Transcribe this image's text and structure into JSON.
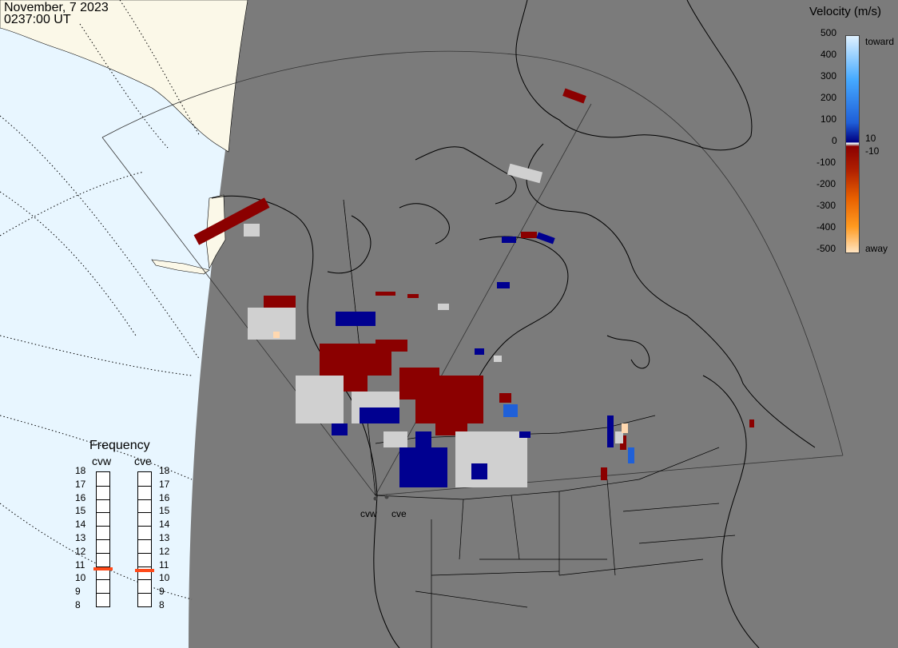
{
  "header": {
    "date": "November, 7 2023",
    "time": "0237:00 UT"
  },
  "legend": {
    "title": "Velocity (m/s)",
    "ticks": [
      "500",
      "400",
      "300",
      "200",
      "100",
      "0",
      "-100",
      "-200",
      "-300",
      "-400",
      "-500"
    ],
    "label_toward": "toward",
    "label_away": "away",
    "label_pos10": "10",
    "label_neg10": "-10",
    "colors": {
      "toward_max": "#dff1ff",
      "toward_mid": "#1f7fff",
      "toward_min": "#000080",
      "zero": "#c8c8c8",
      "away_min": "#8b0000",
      "away_mid": "#e86000",
      "away_max": "#ffe4c0"
    }
  },
  "frequency": {
    "title": "Frequency",
    "radars": [
      {
        "code": "cvw",
        "value_mhz": 10.8
      },
      {
        "code": "cve",
        "value_mhz": 10.7
      }
    ],
    "scale": [
      "18",
      "17",
      "16",
      "15",
      "14",
      "13",
      "12",
      "11",
      "10",
      "9",
      "8"
    ],
    "marker_color": "#ff4a1a"
  },
  "map": {
    "site_labels": [
      "cvw",
      "cve"
    ],
    "colors": {
      "ocean": "#e8f6ff",
      "night": "#7b7b7b",
      "day_land": "#fbf8e8",
      "coast": "#000000"
    }
  }
}
